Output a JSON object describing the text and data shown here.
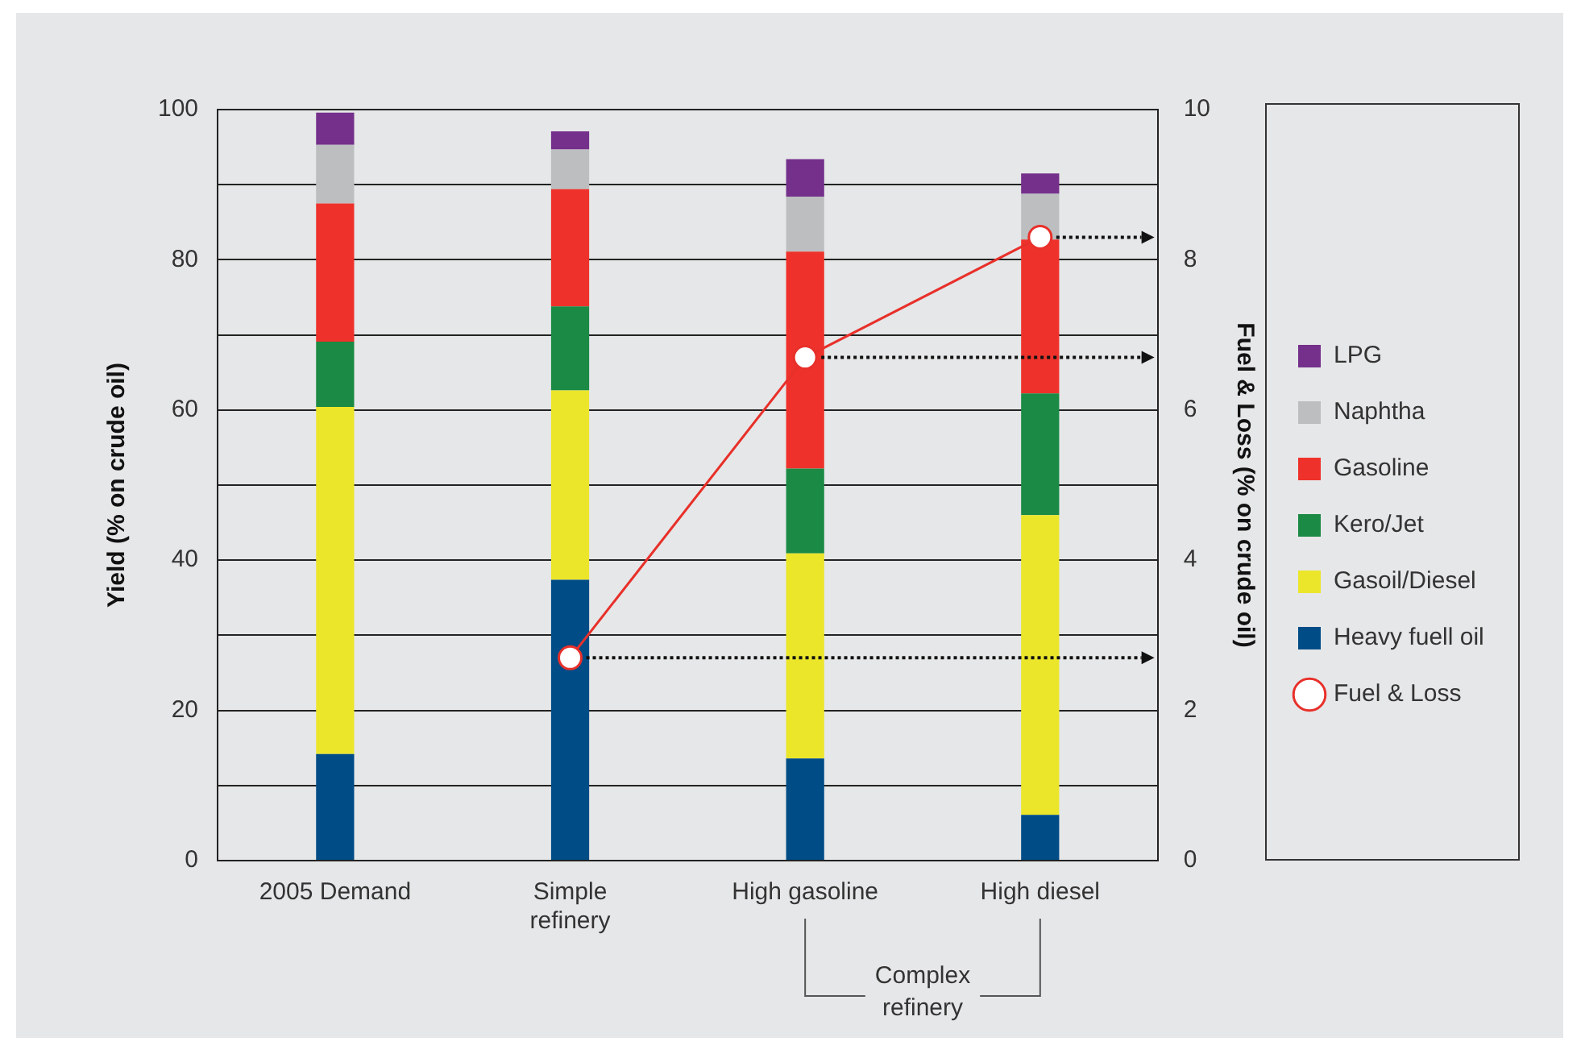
{
  "chart_data": {
    "type": "bar",
    "stacked": true,
    "categories": [
      "2005 Demand",
      "Simple refinery",
      "High gasoline",
      "High diesel"
    ],
    "series": [
      {
        "name": "Heavy fuell oil",
        "color": "#004c86",
        "values": [
          14.2,
          37.4,
          13.6,
          6.1
        ]
      },
      {
        "name": "Gasoil/Diesel",
        "color": "#ebe62a",
        "values": [
          46.2,
          25.2,
          27.3,
          39.9
        ]
      },
      {
        "name": "Kero/Jet",
        "color": "#1b8a45",
        "values": [
          8.7,
          11.2,
          11.3,
          16.2
        ]
      },
      {
        "name": "Gasoline",
        "color": "#ee322b",
        "values": [
          18.4,
          15.6,
          28.9,
          20.5
        ]
      },
      {
        "name": "Naphtha",
        "color": "#bcbec0",
        "values": [
          7.8,
          5.3,
          7.3,
          6.1
        ]
      },
      {
        "name": "LPG",
        "color": "#74308b",
        "values": [
          4.3,
          2.4,
          5.0,
          2.7
        ]
      },
      {
        "name": "Fuel & Loss",
        "type": "line",
        "axis": "y2",
        "color": "#e8302a",
        "marker": "circle",
        "values": [
          null,
          2.7,
          6.7,
          8.3
        ]
      }
    ],
    "ylabel": "Yield (% on crude oil)",
    "y2label": "Fuel & Loss (% on crude oil)",
    "ylim": [
      0,
      100
    ],
    "yticks": [
      0,
      {
        "value": 10,
        "label": null
      },
      20,
      {
        "value": 30,
        "label": null
      },
      40,
      {
        "value": 50,
        "label": null
      },
      60,
      {
        "value": 70,
        "label": null
      },
      80,
      {
        "value": 90,
        "label": null
      },
      100
    ],
    "y2lim": [
      0,
      10
    ],
    "y2ticks": [
      0,
      2,
      4,
      6,
      8,
      10
    ],
    "grid": "y",
    "legend": "right",
    "annotations": [
      "Complex refinery"
    ]
  }
}
